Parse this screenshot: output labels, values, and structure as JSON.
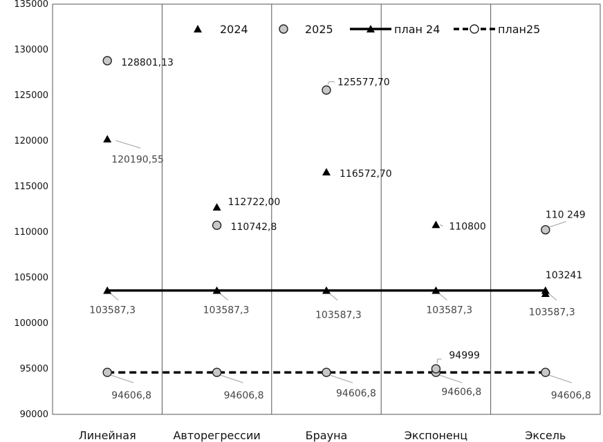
{
  "chart_data": {
    "type": "scatter",
    "title": "",
    "xlabel": "",
    "ylabel": "",
    "categories": [
      "Линейная",
      "Авторегрессии",
      "Брауна",
      "Экспоненц",
      "Эксель"
    ],
    "ylim": [
      90000,
      135000
    ],
    "ytick_step": 5000,
    "y_ticks": [
      "90000",
      "95000",
      "100000",
      "105000",
      "110000",
      "115000",
      "120000",
      "125000",
      "130000",
      "135000"
    ],
    "grid": {
      "vertical": true,
      "horizontal": false
    },
    "legend_position": "top",
    "series": [
      {
        "name": "2024",
        "marker": "triangle",
        "line": "none",
        "color": "#000000",
        "values": [
          120190.55,
          112722.0,
          116572.7,
          110800,
          103241
        ],
        "labels": [
          "120190,55",
          "112722,00",
          "116572,70",
          "110800",
          "103241"
        ]
      },
      {
        "name": "2025",
        "marker": "circle",
        "line": "none",
        "color": "#c8c8c8",
        "values": [
          128801.13,
          110742.8,
          125577.7,
          94999,
          110249
        ],
        "labels": [
          "128801,13",
          "110742,8",
          "125577,70",
          "94999",
          "110 249"
        ]
      },
      {
        "name": "план 24",
        "marker": "triangle",
        "line": "solid",
        "color": "#000000",
        "values": [
          103587.3,
          103587.3,
          103587.3,
          103587.3,
          103587.3
        ],
        "labels": [
          "103587,3",
          "103587,3",
          "103587,3",
          "103587,3",
          "103587,3"
        ]
      },
      {
        "name": "план25",
        "marker": "circle",
        "line": "dashed",
        "color": "#000000",
        "values": [
          94606.8,
          94606.8,
          94606.8,
          94606.8,
          94606.8
        ],
        "labels": [
          "94606,8",
          "94606,8",
          "94606,8",
          "94606,8",
          "94606,8"
        ]
      }
    ]
  }
}
